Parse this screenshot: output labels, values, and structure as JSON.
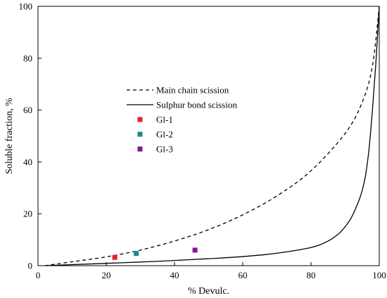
{
  "chart_data": {
    "type": "line",
    "xlabel": "% Devulc.",
    "ylabel": "Soluble fraction, %",
    "xlim": [
      0,
      100
    ],
    "ylim": [
      0,
      100
    ],
    "xticks": [
      0,
      20,
      40,
      60,
      80,
      100
    ],
    "yticks": [
      0,
      20,
      40,
      60,
      80,
      100
    ],
    "grid": false,
    "legend_position": "center-left",
    "series": [
      {
        "name": "Main chain scission",
        "style": "dashed",
        "color": "#000000",
        "x": [
          2,
          10,
          20,
          30,
          40,
          50,
          60,
          70,
          80,
          90,
          95,
          98,
          100
        ],
        "y": [
          0,
          1.5,
          3.4,
          6.0,
          9.5,
          13.9,
          19.6,
          26.9,
          36.6,
          51.0,
          63.0,
          77.0,
          100
        ]
      },
      {
        "name": "Sulphur bond scission",
        "style": "solid",
        "color": "#000000",
        "x": [
          2,
          10,
          20,
          30,
          40,
          50,
          60,
          70,
          80,
          85,
          88,
          90,
          92,
          94,
          95,
          96,
          97,
          98,
          99,
          100
        ],
        "y": [
          0,
          0.4,
          0.9,
          1.4,
          2.0,
          2.7,
          3.5,
          4.8,
          7.0,
          9.5,
          12.2,
          15.0,
          19.0,
          25.0,
          29.0,
          35.0,
          45.0,
          60.0,
          78.0,
          100
        ]
      },
      {
        "name": "Gl-1",
        "type": "scatter",
        "color": "#ee1c25",
        "x": [
          22.5
        ],
        "y": [
          3.2
        ]
      },
      {
        "name": "Gl-2",
        "type": "scatter",
        "color": "#1a8a8a",
        "x": [
          28.8
        ],
        "y": [
          4.7
        ]
      },
      {
        "name": "Gl-3",
        "type": "scatter",
        "color": "#7b1a8c",
        "x": [
          46.0
        ],
        "y": [
          6.0
        ]
      }
    ]
  }
}
